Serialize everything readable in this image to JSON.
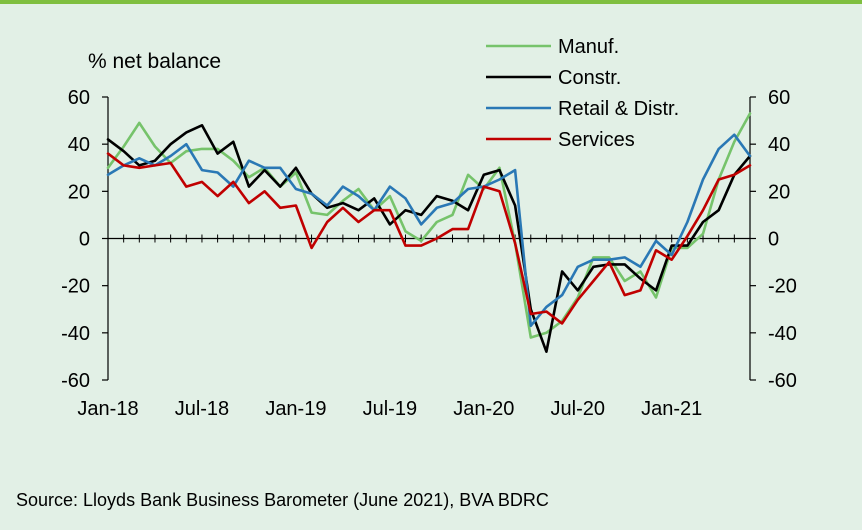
{
  "chart_data": {
    "type": "line",
    "ylabel": "% net balance",
    "ylim": [
      -60,
      60
    ],
    "yticks": [
      60,
      40,
      20,
      0,
      -20,
      -40,
      -60
    ],
    "y2ticks": [
      60,
      40,
      20,
      0,
      -20,
      -40,
      -60
    ],
    "x_tick_labels": [
      "Jan-18",
      "Jul-18",
      "Jan-19",
      "Jul-19",
      "Jan-20",
      "Jul-20",
      "Jan-21"
    ],
    "x_months": [
      "Jan-18",
      "Feb-18",
      "Mar-18",
      "Apr-18",
      "May-18",
      "Jun-18",
      "Jul-18",
      "Aug-18",
      "Sep-18",
      "Oct-18",
      "Nov-18",
      "Dec-18",
      "Jan-19",
      "Feb-19",
      "Mar-19",
      "Apr-19",
      "May-19",
      "Jun-19",
      "Jul-19",
      "Aug-19",
      "Sep-19",
      "Oct-19",
      "Nov-19",
      "Dec-19",
      "Jan-20",
      "Feb-20",
      "Mar-20",
      "Apr-20",
      "May-20",
      "Jun-20",
      "Jul-20",
      "Aug-20",
      "Sep-20",
      "Oct-20",
      "Nov-20",
      "Dec-20",
      "Jan-21",
      "Feb-21",
      "Mar-21",
      "Apr-21",
      "May-21",
      "Jun-21"
    ],
    "legend_position": "top-right",
    "series": [
      {
        "name": "Manuf.",
        "color": "#76c36b",
        "values": [
          30,
          39,
          49,
          39,
          32,
          37,
          38,
          38,
          33,
          26,
          30,
          22,
          28,
          11,
          10,
          16,
          21,
          12,
          18,
          3,
          -1,
          7,
          10,
          27,
          21,
          30,
          -2,
          -42,
          -40,
          -35,
          -25,
          -8,
          -8,
          -18,
          -14,
          -25,
          -4,
          -4,
          2,
          25,
          41,
          53
        ]
      },
      {
        "name": "Constr.",
        "color": "#000000",
        "values": [
          42,
          37,
          31,
          33,
          40,
          45,
          48,
          36,
          41,
          22,
          29,
          22,
          30,
          19,
          13,
          15,
          12,
          17,
          6,
          12,
          10,
          18,
          16,
          12,
          27,
          29,
          14,
          -30,
          -48,
          -14,
          -22,
          -12,
          -11,
          -11,
          -17,
          -22,
          -3,
          -3,
          7,
          12,
          27,
          35
        ]
      },
      {
        "name": "Retail & Distr.",
        "color": "#2a78b5",
        "values": [
          27,
          31,
          34,
          31,
          35,
          40,
          29,
          28,
          22,
          33,
          30,
          30,
          21,
          19,
          14,
          22,
          18,
          12,
          22,
          17,
          6,
          13,
          15,
          21,
          22,
          25,
          29,
          -37,
          -29,
          -24,
          -12,
          -9,
          -9,
          -8,
          -12,
          -1,
          -7,
          7,
          25,
          38,
          44,
          35
        ]
      },
      {
        "name": "Services",
        "color": "#c00000",
        "values": [
          36,
          31,
          30,
          31,
          32,
          22,
          24,
          18,
          24,
          15,
          20,
          13,
          14,
          -4,
          7,
          13,
          7,
          12,
          12,
          -3,
          -3,
          0,
          4,
          4,
          22,
          20,
          -2,
          -32,
          -31,
          -36,
          -26,
          -18,
          -10,
          -24,
          -22,
          -5,
          -9,
          1,
          12,
          25,
          27,
          31
        ]
      }
    ]
  },
  "source": "Source: Lloyds Bank Business Barometer (June 2021), BVA BDRC"
}
